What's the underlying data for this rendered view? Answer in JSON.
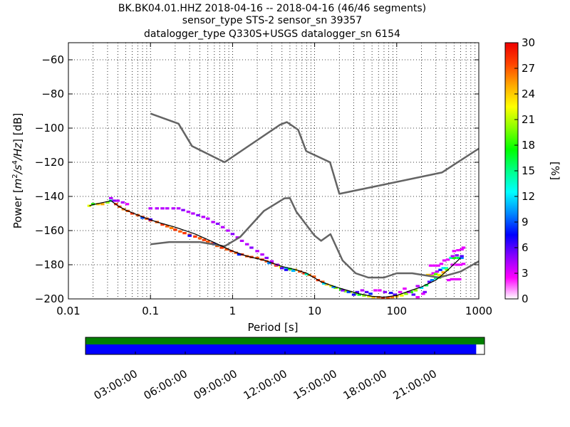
{
  "title": {
    "line1": "BK.BK04.01.HHZ   2018-04-16 -- 2018-04-16  (46/46 segments)",
    "line2": "sensor_type STS-2 sensor_sn 39357",
    "line3": "datalogger_type Q330S+USGS datalogger_sn 6154"
  },
  "chart_data": {
    "type": "heatmap",
    "xlabel": "Period [s]",
    "ylabel": "Power [m²/s⁴/Hz] [dB]",
    "ylabel_parts": {
      "prefix": "Power [",
      "m": "m",
      "m_exp": "2",
      "s": "/s",
      "s_exp": "4",
      "hz": "/Hz",
      "suffix": "] [dB]"
    },
    "x_scale": "log",
    "xlim": [
      0.01,
      1000
    ],
    "ylim": [
      -200,
      -50
    ],
    "x_ticks": [
      0.01,
      0.1,
      1,
      10,
      100,
      1000
    ],
    "x_tick_labels": [
      "0.01",
      "0.1",
      "1",
      "10",
      "100",
      "1000"
    ],
    "y_ticks": [
      -200,
      -180,
      -160,
      -140,
      -120,
      -100,
      -80,
      -60
    ],
    "y_tick_labels": [
      "−200",
      "−180",
      "−160",
      "−140",
      "−120",
      "−100",
      "−80",
      "−60"
    ],
    "grid": true,
    "colorbar": {
      "label": "[%]",
      "range": [
        0,
        30
      ],
      "ticks": [
        0,
        3,
        6,
        9,
        12,
        15,
        18,
        21,
        24,
        27,
        30
      ],
      "tick_labels": [
        "0",
        "3",
        "6",
        "9",
        "12",
        "15",
        "18",
        "21",
        "24",
        "27",
        "30"
      ],
      "colors": [
        "#ffffff",
        "#ff00ff",
        "#8800ff",
        "#0000ff",
        "#0088ff",
        "#00ffff",
        "#00ff88",
        "#00ff00",
        "#88ff00",
        "#ffff00",
        "#ffaa00",
        "#ff4400",
        "#ee0000"
      ]
    },
    "noise_models": [
      {
        "name": "NHNM",
        "points": [
          [
            0.1,
            -91.5
          ],
          [
            0.22,
            -97.4
          ],
          [
            0.32,
            -110.5
          ],
          [
            0.8,
            -120
          ],
          [
            3.8,
            -98
          ],
          [
            4.6,
            -96.5
          ],
          [
            6.3,
            -101
          ],
          [
            7.9,
            -113.5
          ],
          [
            15.4,
            -120
          ],
          [
            20,
            -138.5
          ],
          [
            354.8,
            -126
          ],
          [
            1000,
            -112
          ]
        ]
      },
      {
        "name": "NLNM",
        "points": [
          [
            0.1,
            -168
          ],
          [
            0.17,
            -166.7
          ],
          [
            0.4,
            -166.7
          ],
          [
            0.8,
            -169.2
          ],
          [
            1.24,
            -163.7
          ],
          [
            2.4,
            -148.6
          ],
          [
            4.3,
            -141.1
          ],
          [
            5,
            -141
          ],
          [
            6,
            -149
          ],
          [
            10,
            -163
          ],
          [
            12,
            -166
          ],
          [
            15.6,
            -162.1
          ],
          [
            21.9,
            -177.5
          ],
          [
            31.6,
            -185
          ],
          [
            45,
            -187.5
          ],
          [
            70,
            -187.5
          ],
          [
            100,
            -185
          ],
          [
            154.5,
            -185
          ],
          [
            328.4,
            -187.5
          ],
          [
            600,
            -184
          ],
          [
            1000,
            -178
          ]
        ]
      },
      {
        "name": "mode",
        "points": [
          [
            0.018,
            -145.5
          ],
          [
            0.02,
            -144.8
          ],
          [
            0.03,
            -143
          ],
          [
            0.033,
            -142.5
          ],
          [
            0.04,
            -145.5
          ],
          [
            0.05,
            -148
          ],
          [
            0.08,
            -152
          ],
          [
            0.12,
            -155
          ],
          [
            0.2,
            -158
          ],
          [
            0.35,
            -162
          ],
          [
            0.6,
            -167
          ],
          [
            1,
            -172
          ],
          [
            1.5,
            -175
          ],
          [
            2.5,
            -177.5
          ],
          [
            4,
            -181
          ],
          [
            6,
            -183
          ],
          [
            8,
            -185
          ],
          [
            12,
            -190
          ],
          [
            18,
            -193
          ],
          [
            25,
            -195
          ],
          [
            35,
            -197
          ],
          [
            50,
            -198.5
          ],
          [
            70,
            -199
          ],
          [
            100,
            -198
          ],
          [
            150,
            -195
          ],
          [
            200,
            -193
          ],
          [
            300,
            -189
          ],
          [
            400,
            -184
          ],
          [
            600,
            -176
          ]
        ]
      }
    ],
    "psd_cells": [
      [
        0.018,
        -145.5,
        22
      ],
      [
        0.02,
        -144.5,
        18
      ],
      [
        0.023,
        -144.5,
        24
      ],
      [
        0.026,
        -144.5,
        25
      ],
      [
        0.03,
        -143.5,
        20
      ],
      [
        0.033,
        -142.5,
        14
      ],
      [
        0.033,
        -141,
        4
      ],
      [
        0.036,
        -142.5,
        5
      ],
      [
        0.04,
        -142.5,
        4
      ],
      [
        0.046,
        -143.5,
        4
      ],
      [
        0.052,
        -144.5,
        3
      ],
      [
        0.038,
        -144.5,
        28
      ],
      [
        0.042,
        -146,
        27
      ],
      [
        0.047,
        -147.5,
        26
      ],
      [
        0.053,
        -148.5,
        27
      ],
      [
        0.06,
        -150,
        28
      ],
      [
        0.07,
        -151,
        27
      ],
      [
        0.08,
        -152,
        28
      ],
      [
        0.09,
        -153,
        27
      ],
      [
        0.1,
        -154,
        28
      ],
      [
        0.12,
        -155,
        27
      ],
      [
        0.14,
        -156.5,
        28
      ],
      [
        0.16,
        -157.5,
        27
      ],
      [
        0.18,
        -158.5,
        26
      ],
      [
        0.2,
        -159.5,
        28
      ],
      [
        0.23,
        -160.5,
        27
      ],
      [
        0.26,
        -161.5,
        28
      ],
      [
        0.3,
        -162.5,
        27
      ],
      [
        0.35,
        -163.5,
        28
      ],
      [
        0.4,
        -164.5,
        27
      ],
      [
        0.45,
        -165.5,
        28
      ],
      [
        0.5,
        -166.5,
        27
      ],
      [
        0.57,
        -167.5,
        28
      ],
      [
        0.65,
        -169,
        27
      ],
      [
        0.74,
        -170,
        28
      ],
      [
        0.85,
        -171,
        27
      ],
      [
        0.97,
        -172,
        28
      ],
      [
        1.1,
        -173,
        27
      ],
      [
        1.3,
        -174,
        28
      ],
      [
        1.5,
        -175,
        27
      ],
      [
        1.7,
        -175.5,
        28
      ],
      [
        2,
        -176,
        27
      ],
      [
        2.3,
        -177,
        28
      ],
      [
        2.6,
        -178,
        27
      ],
      [
        3,
        -179,
        28
      ],
      [
        3.4,
        -180.5,
        27
      ],
      [
        3.9,
        -181.5,
        22
      ],
      [
        4.5,
        -182,
        12
      ],
      [
        5,
        -182.5,
        18
      ],
      [
        5.8,
        -183,
        24
      ],
      [
        6.6,
        -184,
        27
      ],
      [
        7.5,
        -185,
        28
      ],
      [
        8.6,
        -186,
        26
      ],
      [
        9.8,
        -187,
        27
      ],
      [
        11,
        -189,
        28
      ],
      [
        12.5,
        -190,
        27
      ],
      [
        14,
        -191.5,
        24
      ],
      [
        16,
        -192.5,
        22
      ],
      [
        18,
        -193.5,
        20
      ],
      [
        21,
        -194.5,
        18
      ],
      [
        24,
        -195.5,
        20
      ],
      [
        27,
        -196,
        21
      ],
      [
        31,
        -197,
        19
      ],
      [
        35,
        -197.5,
        17
      ],
      [
        40,
        -198,
        20
      ],
      [
        46,
        -198.5,
        22
      ],
      [
        52,
        -199,
        24
      ],
      [
        60,
        -199,
        26
      ],
      [
        68,
        -199.5,
        28
      ],
      [
        78,
        -199.5,
        27
      ],
      [
        88,
        -199,
        26
      ],
      [
        100,
        -198.5,
        24
      ],
      [
        115,
        -198,
        22
      ],
      [
        130,
        -197,
        20
      ],
      [
        150,
        -196,
        18
      ],
      [
        170,
        -195,
        20
      ],
      [
        0.1,
        -147,
        4
      ],
      [
        0.12,
        -147,
        4
      ],
      [
        0.14,
        -147,
        4
      ],
      [
        0.16,
        -147,
        4
      ],
      [
        0.19,
        -147,
        4
      ],
      [
        0.22,
        -147,
        4
      ],
      [
        0.25,
        -148,
        5
      ],
      [
        0.29,
        -149,
        4
      ],
      [
        0.33,
        -150,
        4
      ],
      [
        0.38,
        -151,
        5
      ],
      [
        0.44,
        -152,
        4
      ],
      [
        0.5,
        -153,
        4
      ],
      [
        0.58,
        -155,
        4
      ],
      [
        0.66,
        -156,
        5
      ],
      [
        0.76,
        -158,
        4
      ],
      [
        0.88,
        -160,
        4
      ],
      [
        1,
        -162,
        5
      ],
      [
        1.15,
        -164,
        4
      ],
      [
        1.3,
        -166,
        4
      ],
      [
        1.5,
        -168,
        4
      ],
      [
        1.7,
        -170,
        5
      ],
      [
        2,
        -172,
        4
      ],
      [
        2.3,
        -174,
        4
      ],
      [
        2.6,
        -176,
        5
      ],
      [
        3,
        -178,
        4
      ],
      [
        3.5,
        -180,
        4
      ],
      [
        4,
        -182,
        6
      ],
      [
        4.5,
        -183,
        7
      ],
      [
        0.08,
        -152.5,
        9
      ],
      [
        0.1,
        -153.5,
        6
      ],
      [
        0.3,
        -163,
        7
      ],
      [
        0.6,
        -168,
        8
      ],
      [
        1.2,
        -174,
        8
      ],
      [
        2.8,
        -179,
        10
      ],
      [
        5.5,
        -183.5,
        11
      ],
      [
        8,
        -185.5,
        14
      ],
      [
        13,
        -191,
        12
      ],
      [
        17,
        -193,
        10
      ],
      [
        22,
        -195,
        5
      ],
      [
        26,
        -196,
        9
      ],
      [
        30,
        -197.5,
        7
      ],
      [
        33,
        -196,
        6
      ],
      [
        38,
        -195,
        4
      ],
      [
        43,
        -196,
        6
      ],
      [
        48,
        -197,
        8
      ],
      [
        55,
        -195,
        3
      ],
      [
        62,
        -195,
        3
      ],
      [
        72,
        -196,
        5
      ],
      [
        85,
        -196.5,
        7
      ],
      [
        95,
        -197.5,
        6
      ],
      [
        110,
        -196,
        3
      ],
      [
        125,
        -194,
        3
      ],
      [
        140,
        -196,
        4
      ],
      [
        160,
        -197.5,
        6
      ],
      [
        180,
        -192.5,
        4
      ],
      [
        200,
        -193.5,
        12
      ],
      [
        230,
        -192,
        16
      ],
      [
        250,
        -190,
        6
      ],
      [
        270,
        -189,
        10
      ],
      [
        300,
        -188,
        15
      ],
      [
        330,
        -187.5,
        18
      ],
      [
        360,
        -186.5,
        22
      ],
      [
        260,
        -186,
        3
      ],
      [
        280,
        -185,
        3
      ],
      [
        310,
        -184,
        4
      ],
      [
        340,
        -183,
        8
      ],
      [
        370,
        -182,
        12
      ],
      [
        400,
        -182,
        14
      ],
      [
        260,
        -180.5,
        3
      ],
      [
        290,
        -180.5,
        3
      ],
      [
        320,
        -180.5,
        3
      ],
      [
        350,
        -179.5,
        3
      ],
      [
        380,
        -177.5,
        3
      ],
      [
        420,
        -177,
        3
      ],
      [
        460,
        -176,
        14
      ],
      [
        500,
        -176,
        18
      ],
      [
        560,
        -176,
        16
      ],
      [
        620,
        -176,
        10
      ],
      [
        430,
        -189,
        3
      ],
      [
        470,
        -188.5,
        3
      ],
      [
        520,
        -188.5,
        3
      ],
      [
        580,
        -188.5,
        3
      ],
      [
        480,
        -180,
        3
      ],
      [
        540,
        -180,
        3
      ],
      [
        600,
        -180,
        3
      ],
      [
        650,
        -179.5,
        3
      ],
      [
        480,
        -175,
        4
      ],
      [
        540,
        -174.5,
        5
      ],
      [
        620,
        -175,
        6
      ],
      [
        500,
        -172,
        3
      ],
      [
        560,
        -171.5,
        3
      ],
      [
        620,
        -171,
        3
      ],
      [
        650,
        -170,
        3
      ],
      [
        240,
        -186,
        24
      ],
      [
        270,
        -186.5,
        21
      ],
      [
        300,
        -185.5,
        19
      ],
      [
        330,
        -186,
        23
      ],
      [
        370,
        -184.5,
        25
      ],
      [
        410,
        -183,
        20
      ],
      [
        210,
        -197,
        3
      ],
      [
        220,
        -196,
        5
      ],
      [
        180,
        -199,
        3
      ]
    ],
    "timeline": {
      "tick_labels": [
        "03:00:00",
        "06:00:00",
        "09:00:00",
        "12:00:00",
        "15:00:00",
        "18:00:00",
        "21:00:00"
      ],
      "tick_hours": [
        3,
        6,
        9,
        12,
        15,
        18,
        21
      ],
      "range_hours": [
        0,
        24
      ],
      "data_coverage_hours": [
        0,
        24
      ],
      "psd_coverage_hours": [
        0,
        23.5
      ],
      "data_color": "#008000",
      "psd_color": "#0000ff"
    }
  }
}
